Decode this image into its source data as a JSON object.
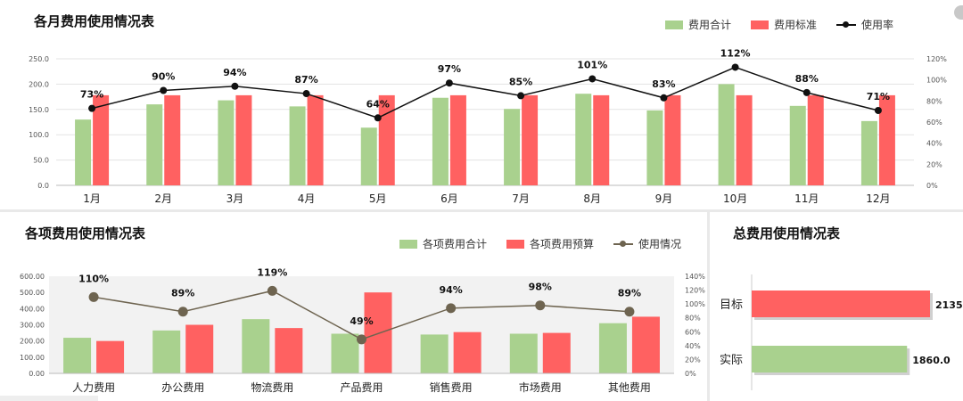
{
  "colors": {
    "green": "#a9d18e",
    "red": "#ff6161",
    "line1": "#111111",
    "line2": "#6e6450",
    "grid": "#e3e3e3",
    "plotbg": "#f2f2f2"
  },
  "chart_data": [
    {
      "type": "bar+line",
      "title": "各月费用使用情况表",
      "categories": [
        "1月",
        "2月",
        "3月",
        "4月",
        "5月",
        "6月",
        "7月",
        "8月",
        "9月",
        "10月",
        "11月",
        "12月"
      ],
      "series": [
        {
          "name": "费用合计",
          "values": [
            130,
            160,
            168,
            156,
            114,
            173,
            151,
            181,
            148,
            200,
            157,
            127
          ]
        },
        {
          "name": "费用标准",
          "values": [
            178,
            178,
            178,
            178,
            178,
            178,
            178,
            178,
            178,
            178,
            178,
            178
          ]
        },
        {
          "name": "使用率",
          "values": [
            73,
            90,
            94,
            87,
            64,
            97,
            85,
            101,
            83,
            112,
            88,
            71
          ],
          "labels": [
            "73%",
            "90%",
            "94%",
            "87%",
            "64%",
            "97%",
            "85%",
            "101%",
            "83%",
            "112%",
            "88%",
            "71%"
          ]
        }
      ],
      "ylim": [
        0,
        250
      ],
      "yticks": [
        "0.0",
        "50.0",
        "100.0",
        "150.0",
        "200.0",
        "250.0"
      ],
      "y2lim": [
        0,
        120
      ],
      "y2ticks": [
        "0%",
        "20%",
        "40%",
        "60%",
        "80%",
        "100%",
        "120%"
      ],
      "legend": "top-right"
    },
    {
      "type": "bar+line",
      "title": "各项费用使用情况表",
      "categories": [
        "人力费用",
        "办公费用",
        "物流费用",
        "产品费用",
        "销售费用",
        "市场费用",
        "其他费用"
      ],
      "series": [
        {
          "name": "各项费用合计",
          "values": [
            220,
            265,
            335,
            245,
            240,
            245,
            310
          ]
        },
        {
          "name": "各项费用预算",
          "values": [
            200,
            300,
            280,
            500,
            255,
            250,
            350
          ]
        },
        {
          "name": "使用情况",
          "values": [
            110,
            89,
            119,
            49,
            94,
            98,
            89
          ],
          "labels": [
            "110%",
            "89%",
            "119%",
            "49%",
            "94%",
            "98%",
            "89%"
          ]
        }
      ],
      "ylim": [
        0,
        600
      ],
      "yticks": [
        "0.00",
        "100.00",
        "200.00",
        "300.00",
        "400.00",
        "500.00",
        "600.00"
      ],
      "y2lim": [
        0,
        140
      ],
      "y2ticks": [
        "0%",
        "20%",
        "40%",
        "60%",
        "80%",
        "100%",
        "120%",
        "140%"
      ],
      "legend": "top-right"
    },
    {
      "type": "bar",
      "orientation": "horizontal",
      "title": "总费用使用情况表",
      "categories": [
        "目标",
        "实际"
      ],
      "values": [
        2135,
        1860.0
      ],
      "labels": [
        "2135",
        "1860.0"
      ],
      "xlim": [
        0,
        2135
      ]
    }
  ]
}
